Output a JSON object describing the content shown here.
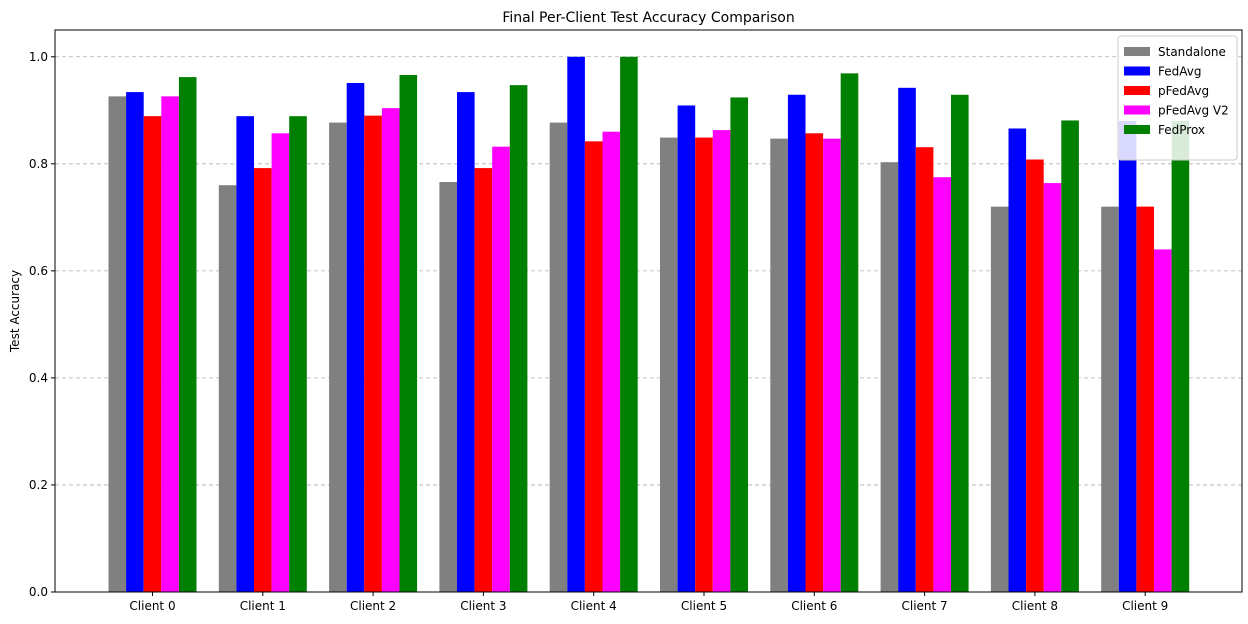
{
  "chart_data": {
    "type": "bar",
    "title": "Final Per-Client Test Accuracy Comparison",
    "xlabel": "",
    "ylabel": "Test Accuracy",
    "categories": [
      "Client 0",
      "Client 1",
      "Client 2",
      "Client 3",
      "Client 4",
      "Client 5",
      "Client 6",
      "Client 7",
      "Client 8",
      "Client 9"
    ],
    "ylim": [
      0,
      1.05
    ],
    "yticks": [
      "0.0",
      "0.2",
      "0.4",
      "0.6",
      "0.8",
      "1.0"
    ],
    "grid": "y-dashed",
    "legend_position": "top-right",
    "series": [
      {
        "name": "Standalone",
        "color": "#808080",
        "values": [
          0.926,
          0.76,
          0.877,
          0.766,
          0.877,
          0.849,
          0.847,
          0.803,
          0.72,
          0.72
        ]
      },
      {
        "name": "FedAvg",
        "color": "#0000ff",
        "values": [
          0.934,
          0.889,
          0.951,
          0.934,
          1.0,
          0.909,
          0.929,
          0.942,
          0.866,
          0.88
        ]
      },
      {
        "name": "pFedAvg",
        "color": "#ff0000",
        "values": [
          0.889,
          0.792,
          0.89,
          0.792,
          0.842,
          0.849,
          0.857,
          0.831,
          0.808,
          0.72
        ]
      },
      {
        "name": "pFedAvg V2",
        "color": "#ff00ff",
        "values": [
          0.926,
          0.857,
          0.904,
          0.832,
          0.86,
          0.863,
          0.847,
          0.775,
          0.764,
          0.64
        ]
      },
      {
        "name": "FedProx",
        "color": "#008000",
        "values": [
          0.962,
          0.889,
          0.966,
          0.947,
          1.0,
          0.924,
          0.969,
          0.929,
          0.881,
          0.88
        ]
      }
    ]
  }
}
